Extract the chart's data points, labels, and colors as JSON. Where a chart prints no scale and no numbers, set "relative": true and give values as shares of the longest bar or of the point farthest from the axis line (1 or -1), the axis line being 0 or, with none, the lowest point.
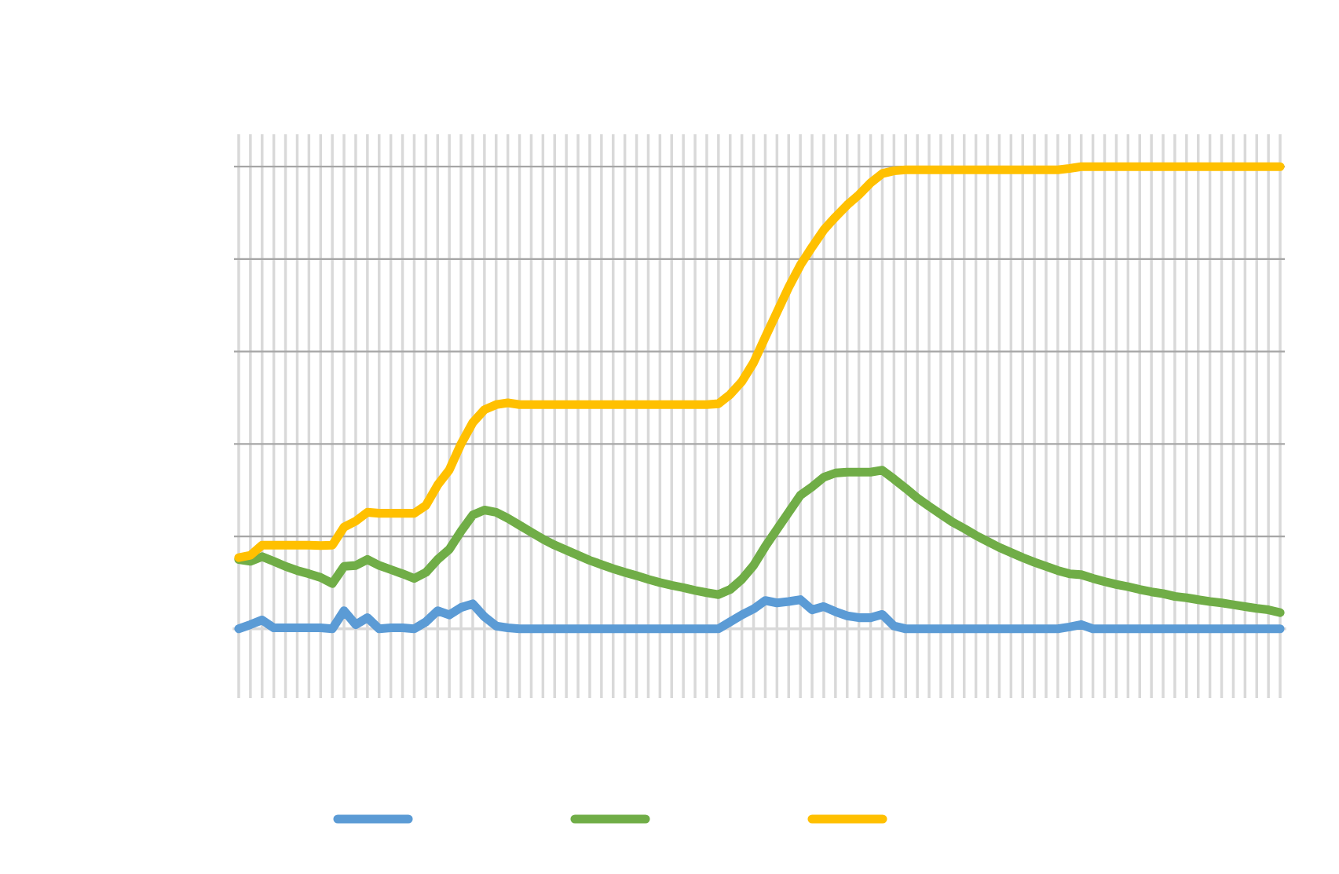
{
  "chart_data": {
    "type": "line",
    "relative": true,
    "grid": true,
    "marker": "none",
    "line_style": "solid",
    "categories": [
      null,
      null,
      null,
      null,
      null,
      null,
      null,
      null,
      null,
      null,
      null,
      null,
      null,
      null,
      null,
      null,
      null,
      null,
      null,
      null,
      null,
      null,
      null,
      null,
      null,
      null,
      null,
      null,
      null,
      null,
      null,
      null,
      null,
      null,
      null,
      null,
      null,
      null,
      null,
      null,
      null,
      null,
      null,
      null,
      null,
      null,
      null,
      null,
      null,
      null,
      null,
      null,
      null,
      null,
      null,
      null,
      null,
      null,
      null,
      null,
      null,
      null,
      null,
      null,
      null,
      null,
      null,
      null,
      null,
      null,
      null,
      null,
      null,
      null,
      null,
      null,
      null,
      null,
      null,
      null,
      null,
      null,
      null,
      null,
      null,
      null,
      null,
      null,
      null,
      null
    ],
    "series": [
      {
        "color": "#5b9bd5",
        "values": [
          0,
          0.009,
          0.019,
          0.002,
          0.002,
          0.002,
          0.002,
          0.002,
          0,
          0.039,
          0.009,
          0.024,
          0,
          0.002,
          0.002,
          0,
          0.015,
          0.039,
          0.03,
          0.046,
          0.054,
          0.026,
          0.006,
          0.002,
          0,
          0,
          0,
          0,
          0,
          0,
          0,
          0,
          0,
          0,
          0,
          0,
          0,
          0,
          0,
          0,
          0,
          0,
          0.015,
          0.03,
          0.043,
          0.061,
          0.056,
          0.059,
          0.063,
          0.041,
          0.048,
          0.037,
          0.028,
          0.024,
          0.024,
          0.031,
          0.006,
          0,
          0,
          0,
          0,
          0,
          0,
          0,
          0,
          0,
          0,
          0,
          0,
          0,
          0,
          0.004,
          0.009,
          0,
          0,
          0,
          0,
          0,
          0,
          0,
          0,
          0,
          0,
          0,
          0,
          0,
          0,
          0,
          0,
          0
        ]
      },
      {
        "color": "#70ad47",
        "values": [
          0.15,
          0.146,
          0.156,
          0.146,
          0.135,
          0.126,
          0.119,
          0.111,
          0.098,
          0.135,
          0.137,
          0.15,
          0.137,
          0.128,
          0.119,
          0.109,
          0.122,
          0.15,
          0.172,
          0.211,
          0.246,
          0.257,
          0.252,
          0.239,
          0.224,
          0.209,
          0.194,
          0.181,
          0.17,
          0.159,
          0.148,
          0.139,
          0.13,
          0.122,
          0.115,
          0.107,
          0.1,
          0.094,
          0.089,
          0.083,
          0.078,
          0.074,
          0.085,
          0.107,
          0.137,
          0.178,
          0.215,
          0.252,
          0.289,
          0.307,
          0.328,
          0.337,
          0.339,
          0.339,
          0.339,
          0.343,
          0.324,
          0.304,
          0.283,
          0.265,
          0.248,
          0.231,
          0.217,
          0.202,
          0.189,
          0.176,
          0.165,
          0.154,
          0.144,
          0.135,
          0.126,
          0.119,
          0.117,
          0.109,
          0.102,
          0.096,
          0.091,
          0.085,
          0.08,
          0.076,
          0.07,
          0.067,
          0.063,
          0.059,
          0.056,
          0.052,
          0.048,
          0.044,
          0.041,
          0.035
        ]
      },
      {
        "color": "#ffc000",
        "values": [
          0.154,
          0.159,
          0.181,
          0.181,
          0.181,
          0.181,
          0.181,
          0.18,
          0.181,
          0.22,
          0.233,
          0.252,
          0.25,
          0.25,
          0.25,
          0.25,
          0.267,
          0.311,
          0.344,
          0.4,
          0.446,
          0.474,
          0.485,
          0.489,
          0.485,
          0.485,
          0.485,
          0.485,
          0.485,
          0.485,
          0.485,
          0.485,
          0.485,
          0.485,
          0.485,
          0.485,
          0.485,
          0.485,
          0.485,
          0.485,
          0.485,
          0.487,
          0.507,
          0.535,
          0.576,
          0.631,
          0.685,
          0.739,
          0.787,
          0.826,
          0.863,
          0.891,
          0.917,
          0.939,
          0.965,
          0.985,
          0.991,
          0.993,
          0.993,
          0.993,
          0.993,
          0.993,
          0.993,
          0.993,
          0.993,
          0.993,
          0.993,
          0.993,
          0.993,
          0.993,
          0.993,
          0.996,
          1.0,
          1.0,
          1.0,
          1.0,
          1.0,
          1.0,
          1.0,
          1.0,
          1.0,
          1.0,
          1.0,
          1.0,
          1.0,
          1.0,
          1.0,
          1.0,
          1.0,
          1.0
        ]
      }
    ]
  }
}
